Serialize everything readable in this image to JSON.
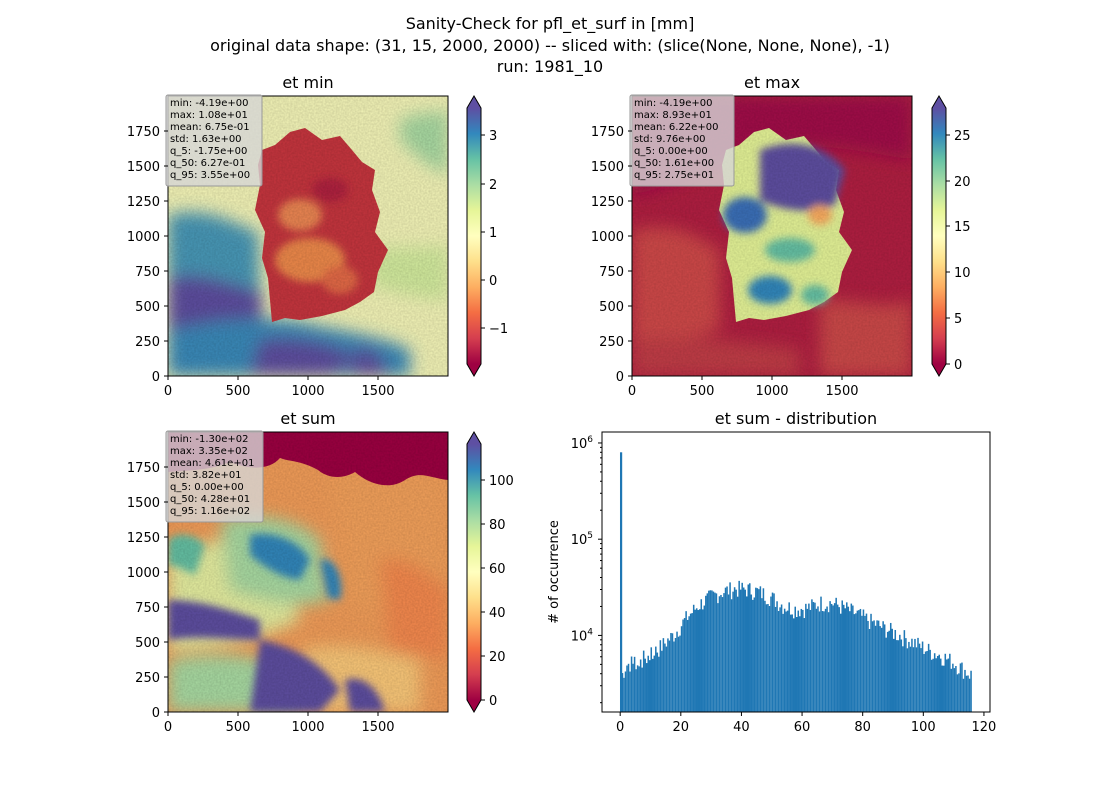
{
  "figure": {
    "title_lines": [
      "Sanity-Check for pfl_et_surf in [mm]",
      "original data shape: (31, 15, 2000, 2000) -- sliced with: (slice(None, None, None), -1)",
      "run: 1981_10"
    ]
  },
  "colors": {
    "hist_bar": "#1f77b4",
    "stats_box_bg": "#d6d6d6",
    "colormap": "Spectral",
    "masked_region_low": "#9e0142"
  },
  "chart_data": [
    {
      "type": "heatmap",
      "id": "et_min",
      "title": "et min",
      "xlim": [
        0,
        2000
      ],
      "ylim": [
        0,
        2000
      ],
      "xticks": [
        0,
        500,
        1000,
        1500
      ],
      "yticks": [
        0,
        250,
        500,
        750,
        1000,
        1250,
        1500,
        1750
      ],
      "colorbar": {
        "min": -1.5,
        "max": 3.6,
        "ticks": [
          -1,
          0,
          1,
          2,
          3
        ],
        "tick_labels": [
          "−1",
          "0",
          "1",
          "2",
          "3"
        ]
      },
      "stats_lines": [
        "min: -4.19e+00",
        "max: 1.08e+01",
        "mean: 6.75e-01",
        "std: 1.63e+00",
        "q_5: -1.75e+00",
        "q_50: 6.27e-01",
        "q_95: 3.55e+00"
      ]
    },
    {
      "type": "heatmap",
      "id": "et_max",
      "title": "et max",
      "xlim": [
        0,
        2000
      ],
      "ylim": [
        0,
        2000
      ],
      "xticks": [
        0,
        500,
        1000,
        1500
      ],
      "yticks": [
        0,
        250,
        500,
        750,
        1000,
        1250,
        1500,
        1750
      ],
      "colorbar": {
        "min": 0,
        "max": 28,
        "ticks": [
          0,
          5,
          10,
          15,
          20,
          25
        ],
        "tick_labels": [
          "0",
          "5",
          "10",
          "15",
          "20",
          "25"
        ]
      },
      "stats_lines": [
        "min: -4.19e+00",
        "max: 8.93e+01",
        "mean: 6.22e+00",
        "std: 9.76e+00",
        "q_5: 0.00e+00",
        "q_50: 1.61e+00",
        "q_95: 2.75e+01"
      ]
    },
    {
      "type": "heatmap",
      "id": "et_sum",
      "title": "et sum",
      "xlim": [
        0,
        2000
      ],
      "ylim": [
        0,
        2000
      ],
      "xticks": [
        0,
        500,
        1000,
        1500
      ],
      "yticks": [
        0,
        250,
        500,
        750,
        1000,
        1250,
        1500,
        1750
      ],
      "colorbar": {
        "min": -5,
        "max": 120,
        "ticks": [
          0,
          20,
          40,
          60,
          80,
          100
        ],
        "tick_labels": [
          "0",
          "20",
          "40",
          "60",
          "80",
          "100"
        ]
      },
      "stats_lines": [
        "min: -1.30e+02",
        "max: 3.35e+02",
        "mean: 4.61e+01",
        "std: 3.82e+01",
        "q_5: 0.00e+00",
        "q_50: 4.28e+01",
        "q_95: 1.16e+02"
      ]
    },
    {
      "type": "bar",
      "id": "et_sum_distribution",
      "title": "et sum - distribution",
      "ylabel": "# of occurrence",
      "yscale": "log",
      "xlim": [
        -6,
        122
      ],
      "ylim": [
        1600,
        1300000
      ],
      "xticks": [
        0,
        20,
        40,
        60,
        80,
        100,
        120
      ],
      "ytick_labels": [
        {
          "value": 10000,
          "base": "10",
          "exp": "4"
        },
        {
          "value": 100000,
          "base": "10",
          "exp": "5"
        },
        {
          "value": 1000000,
          "base": "10",
          "exp": "6"
        }
      ],
      "bins": {
        "start": 0,
        "width": 0.5
      },
      "shape_nodes": [
        [
          0,
          3500
        ],
        [
          2,
          5000
        ],
        [
          6,
          5600
        ],
        [
          10,
          6200
        ],
        [
          14,
          8000
        ],
        [
          18,
          10500
        ],
        [
          22,
          15500
        ],
        [
          26,
          21000
        ],
        [
          30,
          25500
        ],
        [
          34,
          29000
        ],
        [
          38,
          31000
        ],
        [
          42,
          30500
        ],
        [
          46,
          28500
        ],
        [
          50,
          25000
        ],
        [
          54,
          20500
        ],
        [
          58,
          19000
        ],
        [
          62,
          19500
        ],
        [
          66,
          22000
        ],
        [
          70,
          22000
        ],
        [
          74,
          19500
        ],
        [
          78,
          17000
        ],
        [
          82,
          14500
        ],
        [
          86,
          12500
        ],
        [
          90,
          11000
        ],
        [
          94,
          9500
        ],
        [
          98,
          8200
        ],
        [
          102,
          7000
        ],
        [
          106,
          6200
        ],
        [
          110,
          5300
        ],
        [
          114,
          4300
        ],
        [
          116,
          3900
        ]
      ],
      "spike": {
        "x": 0,
        "value": 800000
      }
    }
  ]
}
